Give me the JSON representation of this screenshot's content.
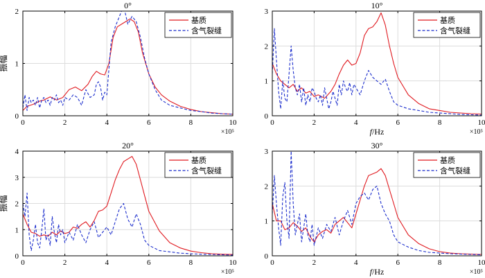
{
  "colors": {
    "matrix": "#e0191f",
    "crack": "#1a2ccc",
    "grid": "#dcdcdc",
    "axis": "#000000"
  },
  "legend": [
    "基质",
    "含气裂缝"
  ],
  "chart_data": [
    {
      "type": "line",
      "title": "0°",
      "ylabel": "振幅",
      "xlabel": "",
      "xlim": [
        0,
        10
      ],
      "ylim": [
        0,
        2
      ],
      "xticks": [
        "0",
        "2",
        "4",
        "6",
        "8",
        "10"
      ],
      "yticks": [
        "0",
        "1",
        "2"
      ],
      "x_exponent_label": "×10⁵",
      "series": [
        {
          "name": "基质",
          "style": "solid",
          "x": [
            0,
            0.2,
            0.5,
            0.8,
            1.0,
            1.3,
            1.6,
            1.9,
            2.2,
            2.5,
            2.8,
            3.1,
            3.3,
            3.5,
            3.7,
            3.9,
            4.1,
            4.3,
            4.5,
            4.7,
            4.9,
            5.1,
            5.3,
            5.5,
            5.7,
            6.0,
            6.3,
            6.6,
            7.0,
            7.5,
            8.0,
            8.5,
            9.0,
            9.5,
            10
          ],
          "y": [
            0.1,
            0.18,
            0.22,
            0.28,
            0.3,
            0.36,
            0.3,
            0.35,
            0.5,
            0.55,
            0.48,
            0.6,
            0.75,
            0.85,
            0.8,
            0.78,
            1.0,
            1.5,
            1.7,
            1.75,
            1.8,
            1.85,
            1.8,
            1.6,
            1.2,
            0.8,
            0.55,
            0.4,
            0.28,
            0.18,
            0.12,
            0.08,
            0.06,
            0.04,
            0.03
          ]
        },
        {
          "name": "含气裂缝",
          "style": "dashed",
          "x": [
            0,
            0.1,
            0.2,
            0.3,
            0.4,
            0.5,
            0.6,
            0.7,
            0.8,
            0.9,
            1.0,
            1.1,
            1.2,
            1.3,
            1.4,
            1.5,
            1.6,
            1.7,
            1.8,
            1.9,
            2.0,
            2.2,
            2.4,
            2.6,
            2.8,
            3.0,
            3.2,
            3.4,
            3.5,
            3.6,
            3.7,
            3.8,
            3.9,
            4.0,
            4.2,
            4.4,
            4.6,
            4.8,
            5.0,
            5.2,
            5.4,
            5.6,
            5.8,
            6.0,
            6.3,
            6.6,
            7.0,
            7.5,
            8.0,
            8.5,
            9.0,
            9.5,
            10
          ],
          "y": [
            0.15,
            0.4,
            0.1,
            0.35,
            0.25,
            0.3,
            0.2,
            0.35,
            0.15,
            0.3,
            0.35,
            0.25,
            0.3,
            0.2,
            0.35,
            0.3,
            0.4,
            0.25,
            0.3,
            0.2,
            0.35,
            0.3,
            0.4,
            0.35,
            0.2,
            0.5,
            0.35,
            0.4,
            0.6,
            0.65,
            0.55,
            0.3,
            0.45,
            0.4,
            1.4,
            1.7,
            1.9,
            2.1,
            1.75,
            1.9,
            1.8,
            1.5,
            1.1,
            0.8,
            0.5,
            0.3,
            0.2,
            0.15,
            0.1,
            0.08,
            0.05,
            0.04,
            0.03
          ]
        }
      ]
    },
    {
      "type": "line",
      "title": "10°",
      "ylabel": "",
      "xlabel": "f/Hz",
      "xlim": [
        0,
        10
      ],
      "ylim": [
        0,
        3
      ],
      "xticks": [
        "0",
        "2",
        "4",
        "6",
        "8",
        "10"
      ],
      "yticks": [
        "0",
        "1",
        "2",
        "3"
      ],
      "x_exponent_label": "×10⁵",
      "series": [
        {
          "name": "基质",
          "style": "solid",
          "x": [
            0,
            0.2,
            0.4,
            0.6,
            0.8,
            1.0,
            1.2,
            1.4,
            1.6,
            1.8,
            2.0,
            2.2,
            2.5,
            2.8,
            3.0,
            3.2,
            3.4,
            3.6,
            3.8,
            4.0,
            4.2,
            4.4,
            4.6,
            4.8,
            5.0,
            5.2,
            5.4,
            5.6,
            5.8,
            6.0,
            6.5,
            7.0,
            7.5,
            8.0,
            8.5,
            9.0,
            9.5,
            10
          ],
          "y": [
            1.5,
            1.2,
            1.0,
            0.9,
            0.8,
            0.9,
            0.7,
            0.8,
            0.65,
            0.7,
            0.55,
            0.6,
            0.5,
            0.7,
            0.9,
            1.2,
            1.45,
            1.6,
            1.45,
            1.5,
            1.8,
            2.3,
            2.5,
            2.55,
            2.7,
            2.95,
            2.6,
            2.0,
            1.5,
            1.1,
            0.6,
            0.35,
            0.2,
            0.15,
            0.1,
            0.08,
            0.06,
            0.05
          ]
        },
        {
          "name": "含气裂缝",
          "style": "dashed",
          "x": [
            0,
            0.1,
            0.2,
            0.3,
            0.4,
            0.5,
            0.6,
            0.7,
            0.8,
            0.9,
            1.0,
            1.1,
            1.2,
            1.3,
            1.4,
            1.5,
            1.6,
            1.7,
            1.8,
            1.9,
            2.0,
            2.1,
            2.2,
            2.3,
            2.4,
            2.5,
            2.6,
            2.7,
            2.8,
            2.9,
            3.0,
            3.1,
            3.2,
            3.3,
            3.4,
            3.5,
            3.6,
            3.7,
            3.8,
            3.9,
            4.0,
            4.2,
            4.4,
            4.6,
            4.8,
            5.0,
            5.2,
            5.4,
            5.6,
            5.8,
            6.0,
            6.5,
            7.0,
            7.5,
            8.0,
            8.5,
            9.0,
            9.5,
            10
          ],
          "y": [
            1.2,
            2.5,
            1.6,
            0.7,
            0.2,
            1.0,
            0.5,
            0.4,
            1.2,
            2.0,
            1.3,
            0.8,
            0.6,
            0.9,
            0.4,
            0.8,
            0.3,
            0.6,
            0.4,
            0.8,
            0.7,
            0.5,
            0.4,
            0.6,
            0.3,
            0.8,
            0.5,
            0.2,
            0.4,
            0.7,
            0.5,
            0.3,
            0.9,
            0.6,
            1.0,
            0.8,
            0.7,
            0.95,
            0.6,
            0.9,
            0.8,
            0.6,
            1.0,
            1.3,
            1.1,
            1.0,
            0.9,
            1.05,
            0.7,
            0.4,
            0.3,
            0.2,
            0.15,
            0.1,
            0.08,
            0.06,
            0.04,
            0.03,
            0.02
          ]
        }
      ]
    },
    {
      "type": "line",
      "title": "20°",
      "ylabel": "振幅",
      "xlabel": "",
      "xlim": [
        0,
        10
      ],
      "ylim": [
        0,
        4
      ],
      "xticks": [
        "0",
        "2",
        "4",
        "6",
        "8",
        "10"
      ],
      "yticks": [
        "0",
        "1",
        "2",
        "3",
        "4"
      ],
      "x_exponent_label": "×10⁵",
      "series": [
        {
          "name": "基质",
          "style": "solid",
          "x": [
            0,
            0.2,
            0.4,
            0.6,
            0.8,
            1.0,
            1.2,
            1.4,
            1.6,
            1.8,
            2.0,
            2.2,
            2.4,
            2.6,
            2.8,
            3.0,
            3.2,
            3.4,
            3.6,
            3.8,
            4.0,
            4.2,
            4.4,
            4.6,
            4.8,
            5.0,
            5.2,
            5.4,
            5.6,
            5.8,
            6.0,
            6.5,
            7.0,
            7.5,
            8.0,
            8.5,
            9.0,
            9.5,
            10
          ],
          "y": [
            1.6,
            1.2,
            0.9,
            0.85,
            0.75,
            0.8,
            0.75,
            0.9,
            0.8,
            0.95,
            0.85,
            0.9,
            1.1,
            1.05,
            1.2,
            1.3,
            1.1,
            1.35,
            1.7,
            1.75,
            1.9,
            2.4,
            2.9,
            3.3,
            3.6,
            3.7,
            3.8,
            3.5,
            2.9,
            2.3,
            1.7,
            0.95,
            0.5,
            0.3,
            0.18,
            0.12,
            0.08,
            0.06,
            0.05
          ]
        },
        {
          "name": "含气裂缝",
          "style": "dashed",
          "x": [
            0,
            0.1,
            0.2,
            0.3,
            0.4,
            0.5,
            0.6,
            0.7,
            0.8,
            0.9,
            1.0,
            1.1,
            1.2,
            1.3,
            1.4,
            1.5,
            1.6,
            1.7,
            1.8,
            1.9,
            2.0,
            2.2,
            2.4,
            2.6,
            2.8,
            3.0,
            3.2,
            3.4,
            3.6,
            3.8,
            4.0,
            4.2,
            4.4,
            4.6,
            4.8,
            5.0,
            5.2,
            5.4,
            5.6,
            5.8,
            6.0,
            6.5,
            7.0,
            7.5,
            8.0,
            8.5,
            9.0,
            9.5,
            10
          ],
          "y": [
            2.0,
            1.5,
            2.4,
            0.8,
            0.2,
            0.6,
            1.2,
            0.5,
            0.3,
            1.0,
            1.8,
            0.6,
            0.8,
            0.4,
            1.5,
            0.9,
            0.5,
            1.2,
            0.8,
            1.0,
            0.5,
            0.9,
            0.6,
            1.2,
            0.8,
            0.5,
            1.0,
            1.3,
            0.7,
            0.9,
            1.1,
            0.8,
            1.3,
            1.8,
            2.0,
            1.4,
            1.1,
            1.6,
            1.2,
            0.6,
            0.4,
            0.2,
            0.15,
            0.1,
            0.08,
            0.06,
            0.05,
            0.04,
            0.03
          ]
        }
      ]
    },
    {
      "type": "line",
      "title": "30°",
      "ylabel": "",
      "xlabel": "f/Hz",
      "xlim": [
        0,
        10
      ],
      "ylim": [
        0,
        3
      ],
      "xticks": [
        "0",
        "2",
        "4",
        "6",
        "8",
        "10"
      ],
      "yticks": [
        "0",
        "1",
        "2",
        "3"
      ],
      "x_exponent_label": "×10⁵",
      "series": [
        {
          "name": "基质",
          "style": "solid",
          "x": [
            0,
            0.2,
            0.4,
            0.6,
            0.8,
            1.0,
            1.2,
            1.4,
            1.6,
            1.8,
            2.0,
            2.2,
            2.4,
            2.6,
            2.8,
            3.0,
            3.2,
            3.4,
            3.6,
            3.8,
            4.0,
            4.2,
            4.4,
            4.6,
            4.8,
            5.0,
            5.2,
            5.4,
            5.6,
            5.8,
            6.0,
            6.5,
            7.0,
            7.5,
            8.0,
            8.5,
            9.0,
            9.5,
            10
          ],
          "y": [
            1.5,
            1.0,
            1.0,
            0.75,
            0.8,
            0.95,
            0.85,
            0.7,
            0.8,
            0.55,
            0.4,
            0.6,
            0.7,
            0.75,
            0.65,
            0.9,
            1.0,
            1.1,
            0.95,
            0.8,
            1.2,
            1.6,
            2.0,
            2.3,
            2.35,
            2.4,
            2.5,
            2.3,
            1.9,
            1.5,
            1.1,
            0.6,
            0.35,
            0.2,
            0.12,
            0.08,
            0.06,
            0.05,
            0.04
          ]
        },
        {
          "name": "含气裂缝",
          "style": "dashed",
          "x": [
            0,
            0.1,
            0.2,
            0.3,
            0.4,
            0.5,
            0.6,
            0.7,
            0.8,
            0.9,
            1.0,
            1.1,
            1.2,
            1.3,
            1.4,
            1.5,
            1.6,
            1.7,
            1.8,
            1.9,
            2.0,
            2.2,
            2.4,
            2.6,
            2.8,
            3.0,
            3.2,
            3.4,
            3.6,
            3.8,
            4.0,
            4.2,
            4.4,
            4.6,
            4.8,
            5.0,
            5.2,
            5.4,
            5.6,
            5.8,
            6.0,
            6.5,
            7.0,
            7.5,
            8.0,
            8.5,
            9.0,
            9.5,
            10
          ],
          "y": [
            1.2,
            2.3,
            1.5,
            0.8,
            0.3,
            1.7,
            2.1,
            1.0,
            0.5,
            3.0,
            1.5,
            0.6,
            0.9,
            1.2,
            0.4,
            0.8,
            1.2,
            0.6,
            0.4,
            0.9,
            0.3,
            0.8,
            0.5,
            0.9,
            0.7,
            1.1,
            0.6,
            1.0,
            1.3,
            0.9,
            1.5,
            1.7,
            1.8,
            1.6,
            1.9,
            2.0,
            1.5,
            1.2,
            1.0,
            0.6,
            0.4,
            0.25,
            0.15,
            0.1,
            0.08,
            0.06,
            0.05,
            0.04,
            0.03
          ]
        }
      ]
    }
  ]
}
